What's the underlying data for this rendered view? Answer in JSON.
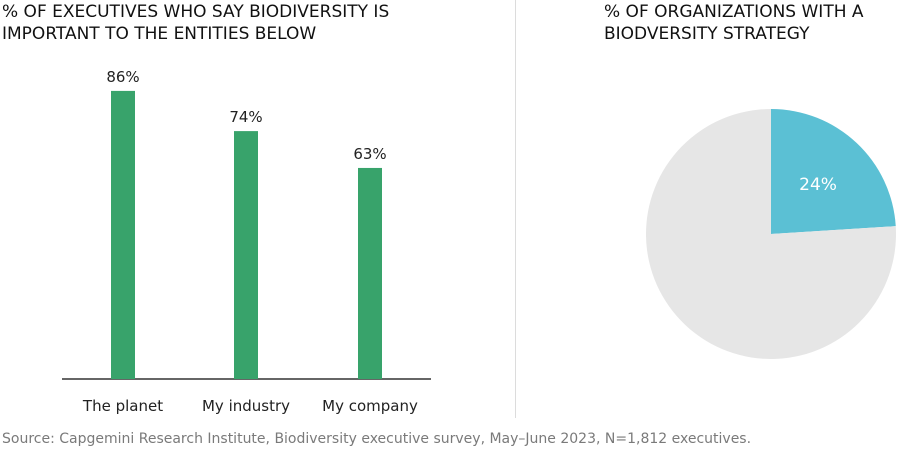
{
  "chart_data": [
    {
      "type": "bar",
      "title": "% OF EXECUTIVES WHO SAY BIODIVERSITY IS IMPORTANT TO THE ENTITIES BELOW",
      "categories": [
        "The planet",
        "My industry",
        "My company"
      ],
      "values": [
        86,
        74,
        63
      ],
      "value_labels": [
        "86%",
        "74%",
        "63%"
      ],
      "ylim": [
        0,
        100
      ],
      "grid": false,
      "colors": {
        "bar": "#38a36b",
        "axis": "#333333"
      }
    },
    {
      "type": "pie",
      "title": "% OF ORGANIZATIONS WITH A BIODVERSITY STRATEGY",
      "slices": [
        {
          "value": 24,
          "label": "24%",
          "color": "#5bc0d4"
        },
        {
          "value": 76,
          "label": "",
          "color": "#e6e6e6"
        }
      ]
    }
  ],
  "source": "Source: Capgemini Research Institute, Biodiversity executive survey, May–June 2023, N=1,812 executives."
}
